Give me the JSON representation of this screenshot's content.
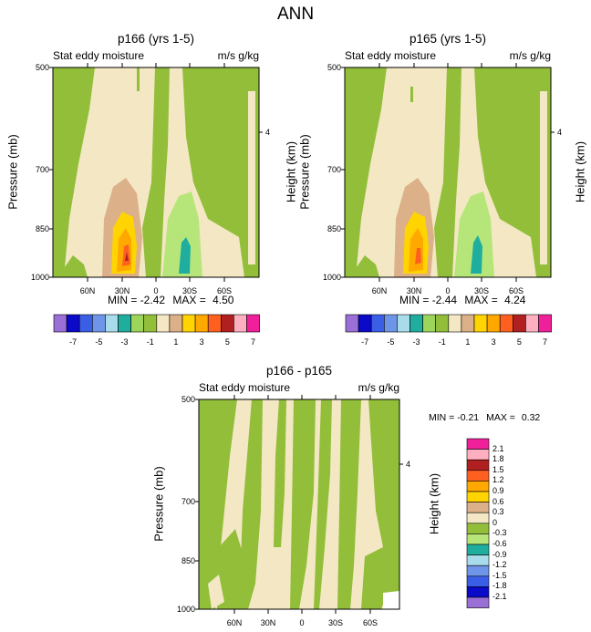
{
  "page": {
    "title": "ANN"
  },
  "panels": [
    {
      "title": "p166 (yrs 1-5)",
      "left_label": "Stat eddy moisture",
      "right_label": "m/s g/kg",
      "min_label": "MIN =",
      "min_value": "-2.42",
      "max_label": "MAX =",
      "max_value": "4.50"
    },
    {
      "title": "p165 (yrs 1-5)",
      "left_label": "Stat eddy moisture",
      "right_label": "m/s g/kg",
      "min_label": "MIN =",
      "min_value": "-2.44",
      "max_label": "MAX =",
      "max_value": "4.24"
    },
    {
      "title": "p166 - p165",
      "left_label": "Stat eddy moisture",
      "right_label": "m/s g/kg",
      "min_label": "MIN =",
      "min_value": "-0.21",
      "max_label": "MAX =",
      "max_value": "0.32"
    }
  ],
  "axes": {
    "ylabel": "Pressure (mb)",
    "y2label": "Height (km)",
    "yticks": [
      "500",
      "700",
      "850",
      "1000"
    ],
    "y2ticks": [
      "4"
    ],
    "xticks": [
      "60N",
      "30N",
      "0",
      "30S",
      "60S"
    ]
  },
  "colorbar_top": {
    "labels": [
      "-7",
      "-5",
      "-3",
      "-1",
      "1",
      "3",
      "5",
      "7"
    ],
    "colors": [
      "#9a6fd6",
      "#0a0ac8",
      "#3b5ee6",
      "#6f95e8",
      "#a8dcea",
      "#1fae9e",
      "#9dd45a",
      "#92be3a",
      "#f4e8c4",
      "#dcb088",
      "#ffd400",
      "#ffa800",
      "#ff6020",
      "#b02020",
      "#ffb0c0",
      "#f0209a"
    ]
  },
  "colorbar_bottom": {
    "labels": [
      "2.1",
      "1.8",
      "1.5",
      "1.2",
      "0.9",
      "0.6",
      "0.3",
      "0",
      "-0.3",
      "-0.6",
      "-0.9",
      "-1.2",
      "-1.5",
      "-1.8",
      "-2.1"
    ],
    "colors": [
      "#f0209a",
      "#ffb0c0",
      "#b02020",
      "#ff6020",
      "#ffa800",
      "#ffd400",
      "#dcb088",
      "#f4e8c4",
      "#92be3a",
      "#b6e67a",
      "#1fae9e",
      "#a8dcea",
      "#6f95e8",
      "#3b5ee6",
      "#0a0ac8",
      "#9a6fd6"
    ]
  },
  "chart_data": [
    {
      "type": "heatmap",
      "title": "p166 (yrs 1-5)",
      "subtitle_left": "Stat eddy moisture",
      "subtitle_right": "m/s g/kg",
      "xlabel": "",
      "ylabel": "Pressure (mb)",
      "y2label": "Height (km)",
      "x_ticks": [
        "60N",
        "30N",
        "0",
        "30S",
        "60S"
      ],
      "y_ticks": [
        500,
        700,
        850,
        1000
      ],
      "ylim": [
        1000,
        500
      ],
      "min": -2.42,
      "max": 4.5,
      "features": [
        {
          "region": "30N near surface",
          "peak": 4.5
        },
        {
          "region": "30S near surface",
          "trough": -2.42
        }
      ]
    },
    {
      "type": "heatmap",
      "title": "p165 (yrs 1-5)",
      "subtitle_left": "Stat eddy moisture",
      "subtitle_right": "m/s g/kg",
      "xlabel": "",
      "ylabel": "Pressure (mb)",
      "y2label": "Height (km)",
      "x_ticks": [
        "60N",
        "30N",
        "0",
        "30S",
        "60S"
      ],
      "y_ticks": [
        500,
        700,
        850,
        1000
      ],
      "ylim": [
        1000,
        500
      ],
      "min": -2.44,
      "max": 4.24
    },
    {
      "type": "heatmap",
      "title": "p166 - p165",
      "subtitle_left": "Stat eddy moisture",
      "subtitle_right": "m/s g/kg",
      "xlabel": "",
      "ylabel": "Pressure (mb)",
      "y2label": "Height (km)",
      "x_ticks": [
        "60N",
        "30N",
        "0",
        "30S",
        "60S"
      ],
      "y_ticks": [
        500,
        700,
        850,
        1000
      ],
      "ylim": [
        1000,
        500
      ],
      "min": -0.21,
      "max": 0.32
    }
  ]
}
